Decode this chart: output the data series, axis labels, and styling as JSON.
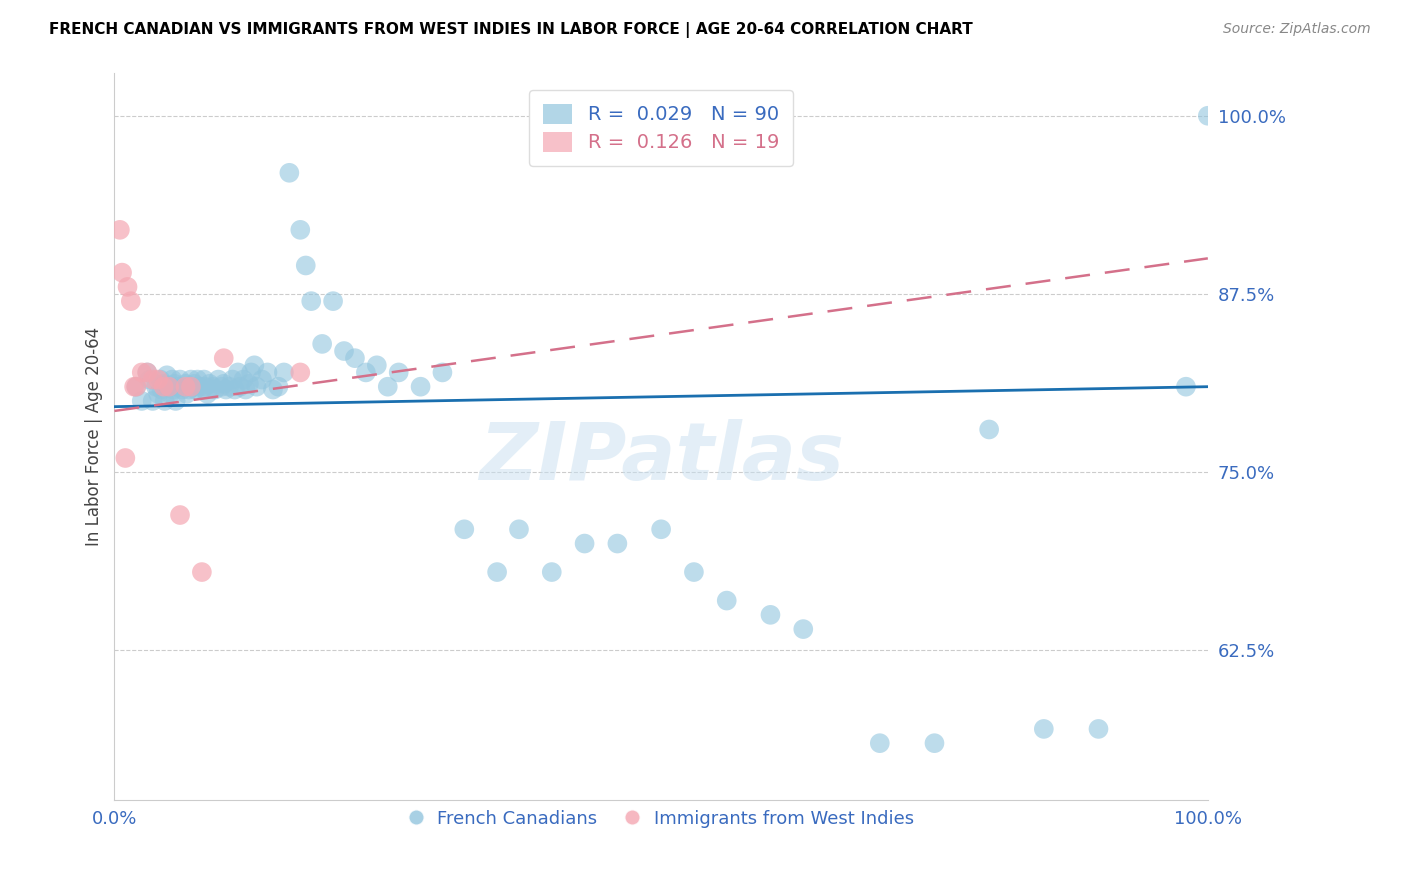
{
  "title": "FRENCH CANADIAN VS IMMIGRANTS FROM WEST INDIES IN LABOR FORCE | AGE 20-64 CORRELATION CHART",
  "source": "Source: ZipAtlas.com",
  "ylabel": "In Labor Force | Age 20-64",
  "xlim": [
    0.0,
    1.0
  ],
  "ylim": [
    0.52,
    1.03
  ],
  "yticks": [
    0.625,
    0.75,
    0.875,
    1.0
  ],
  "ytick_labels": [
    "62.5%",
    "75.0%",
    "87.5%",
    "100.0%"
  ],
  "xticks": [
    0.0,
    0.2,
    0.4,
    0.6,
    0.8,
    1.0
  ],
  "xtick_labels": [
    "0.0%",
    "",
    "",
    "",
    "",
    "100.0%"
  ],
  "blue_R": 0.029,
  "blue_N": 90,
  "pink_R": 0.126,
  "pink_N": 19,
  "blue_color": "#92c5de",
  "pink_color": "#f4a7b2",
  "line_blue": "#1a6faf",
  "line_pink": "#d4708a",
  "legend_label_blue": "French Canadians",
  "legend_label_pink": "Immigrants from West Indies",
  "watermark": "ZIPatlas",
  "blue_x": [
    0.02,
    0.025,
    0.03,
    0.032,
    0.035,
    0.038,
    0.04,
    0.042,
    0.043,
    0.045,
    0.046,
    0.048,
    0.05,
    0.051,
    0.053,
    0.054,
    0.055,
    0.056,
    0.058,
    0.06,
    0.062,
    0.063,
    0.065,
    0.066,
    0.068,
    0.07,
    0.071,
    0.073,
    0.074,
    0.076,
    0.078,
    0.08,
    0.082,
    0.083,
    0.085,
    0.087,
    0.09,
    0.092,
    0.095,
    0.098,
    0.1,
    0.102,
    0.105,
    0.108,
    0.11,
    0.113,
    0.115,
    0.118,
    0.12,
    0.123,
    0.125,
    0.128,
    0.13,
    0.135,
    0.14,
    0.145,
    0.15,
    0.155,
    0.16,
    0.17,
    0.175,
    0.18,
    0.19,
    0.2,
    0.21,
    0.22,
    0.23,
    0.24,
    0.25,
    0.26,
    0.28,
    0.3,
    0.32,
    0.35,
    0.37,
    0.4,
    0.43,
    0.46,
    0.5,
    0.53,
    0.56,
    0.6,
    0.63,
    0.7,
    0.75,
    0.8,
    0.85,
    0.9,
    0.98,
    1.0
  ],
  "blue_y": [
    0.81,
    0.8,
    0.82,
    0.815,
    0.8,
    0.81,
    0.805,
    0.815,
    0.808,
    0.812,
    0.8,
    0.818,
    0.81,
    0.805,
    0.815,
    0.808,
    0.812,
    0.8,
    0.81,
    0.815,
    0.808,
    0.81,
    0.812,
    0.805,
    0.808,
    0.815,
    0.81,
    0.812,
    0.808,
    0.815,
    0.81,
    0.808,
    0.815,
    0.81,
    0.805,
    0.812,
    0.81,
    0.808,
    0.815,
    0.81,
    0.812,
    0.808,
    0.81,
    0.815,
    0.808,
    0.82,
    0.81,
    0.815,
    0.808,
    0.812,
    0.82,
    0.825,
    0.81,
    0.815,
    0.82,
    0.808,
    0.81,
    0.82,
    0.96,
    0.92,
    0.895,
    0.87,
    0.84,
    0.87,
    0.835,
    0.83,
    0.82,
    0.825,
    0.81,
    0.82,
    0.81,
    0.82,
    0.71,
    0.68,
    0.71,
    0.68,
    0.7,
    0.7,
    0.71,
    0.68,
    0.66,
    0.65,
    0.64,
    0.56,
    0.56,
    0.78,
    0.57,
    0.57,
    0.81,
    1.0
  ],
  "pink_x": [
    0.005,
    0.007,
    0.01,
    0.012,
    0.015,
    0.018,
    0.02,
    0.025,
    0.03,
    0.035,
    0.04,
    0.045,
    0.05,
    0.06,
    0.065,
    0.07,
    0.08,
    0.1,
    0.17
  ],
  "pink_y": [
    0.92,
    0.89,
    0.76,
    0.88,
    0.87,
    0.81,
    0.81,
    0.82,
    0.82,
    0.815,
    0.815,
    0.81,
    0.81,
    0.72,
    0.81,
    0.81,
    0.68,
    0.83,
    0.82
  ]
}
